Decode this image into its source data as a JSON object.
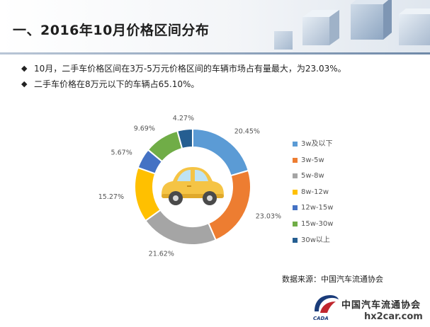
{
  "title": "一、2016年10月价格区间分布",
  "bullets": [
    "10月，二手车价格区间在3万-5万元价格区间的车辆市场占有量最大，为23.03%。",
    "二手车价格在8万元以下的车辆占65.10%。"
  ],
  "bullet_symbol": "◆",
  "chart_data": {
    "type": "pie",
    "style": "donut",
    "title": "",
    "categories": [
      "3w及以下",
      "3w-5w",
      "5w-8w",
      "8w-12w",
      "12w-15w",
      "15w-30w",
      "30w以上"
    ],
    "values": [
      20.45,
      23.03,
      21.62,
      15.27,
      5.67,
      9.69,
      4.27
    ],
    "value_labels": [
      "20.45%",
      "23.03%",
      "21.62%",
      "15.27%",
      "5.67%",
      "9.69%",
      "4.27%"
    ],
    "colors": [
      "#5B9BD5",
      "#ED7D31",
      "#A5A5A5",
      "#FFC000",
      "#4472C4",
      "#70AD47",
      "#255E91"
    ],
    "legend_position": "right",
    "center_icon": "car-icon"
  },
  "source_text": "数据来源：中国汽车流通协会",
  "logo": {
    "abbr": "CADA",
    "org_text": "中国汽车流通协会",
    "watermark": "hx2car.com"
  }
}
